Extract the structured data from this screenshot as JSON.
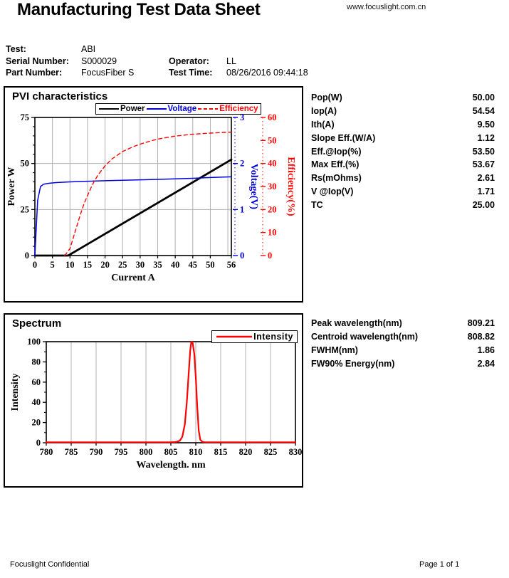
{
  "header": {
    "title": "Manufacturing Test Data Sheet",
    "website": "www.focuslight.com.cn"
  },
  "info": {
    "test_label": "Test:",
    "test_value": "ABI",
    "serial_label": "Serial Number:",
    "serial_value": "S000029",
    "operator_label": "Operator:",
    "operator_value": "LL",
    "part_label": "Part Number:",
    "part_value": "FocusFiber S",
    "time_label": "Test Time:",
    "time_value": "08/26/2016 09:44:18"
  },
  "pvi": {
    "title": "PVI characteristics",
    "stats": [
      {
        "label": "Pop(W)",
        "value": "50.00"
      },
      {
        "label": "Iop(A)",
        "value": "54.54"
      },
      {
        "label": "Ith(A)",
        "value": "9.50"
      },
      {
        "label": "Slope Eff.(W/A)",
        "value": "1.12"
      },
      {
        "label": "Eff.@Iop(%)",
        "value": "53.50"
      },
      {
        "label": "Max Eff.(%)",
        "value": "53.67"
      },
      {
        "label": "Rs(mOhms)",
        "value": "2.61"
      },
      {
        "label": "V @Iop(V)",
        "value": "1.71"
      },
      {
        "label": "TC",
        "value": "25.00"
      }
    ]
  },
  "spectrum": {
    "title": "Spectrum",
    "stats": [
      {
        "label": "Peak wavelength(nm)",
        "value": "809.21"
      },
      {
        "label": "Centroid wavelength(nm)",
        "value": "808.82"
      },
      {
        "label": "FWHM(nm)",
        "value": "1.86"
      },
      {
        "label": "FW90% Energy(nm)",
        "value": "2.84"
      }
    ]
  },
  "footer": {
    "left": "Focuslight Confidential",
    "right": "Page 1 of 1"
  },
  "colors": {
    "power": "#000000",
    "voltage": "#0000dd",
    "efficiency": "#ff0000",
    "grid": "#b0b0b0"
  },
  "chart_data": [
    {
      "type": "line",
      "title": "PVI characteristics",
      "xlabel": "Current A",
      "xlim": [
        0,
        56
      ],
      "xticks": [
        0,
        5,
        10,
        15,
        20,
        25,
        30,
        35,
        40,
        45,
        50,
        56
      ],
      "grid": {
        "x": [
          5,
          10,
          15,
          20,
          25,
          30,
          35,
          40,
          45,
          50,
          55
        ],
        "y_power": [
          25,
          50
        ]
      },
      "legend_position": "top",
      "axes": [
        {
          "label": "Power W",
          "side": "left",
          "color": "#000000",
          "lim": [
            0,
            75
          ],
          "ticks": [
            0,
            25,
            50,
            75
          ]
        },
        {
          "label": "Voltage(V)",
          "side": "right",
          "color": "#0000dd",
          "lim": [
            0,
            3
          ],
          "ticks": [
            0,
            1,
            2,
            3
          ]
        },
        {
          "label": "Efficiency(%)",
          "side": "right2",
          "color": "#ff0000",
          "lim": [
            0,
            60
          ],
          "ticks": [
            0,
            10,
            20,
            30,
            40,
            50,
            60
          ]
        }
      ],
      "series": [
        {
          "name": "Power",
          "axis": 0,
          "color": "#000000",
          "width": 2.8,
          "dash": false,
          "points": [
            [
              0,
              0
            ],
            [
              9.5,
              0
            ],
            [
              56,
              52.1
            ]
          ]
        },
        {
          "name": "Voltage",
          "axis": 1,
          "color": "#0000dd",
          "width": 1.5,
          "dash": false,
          "points": [
            [
              0,
              0
            ],
            [
              0.8,
              1.2
            ],
            [
              1.6,
              1.5
            ],
            [
              2.5,
              1.55
            ],
            [
              4,
              1.57
            ],
            [
              6,
              1.585
            ],
            [
              10,
              1.6
            ],
            [
              15,
              1.615
            ],
            [
              20,
              1.625
            ],
            [
              25,
              1.635
            ],
            [
              30,
              1.645
            ],
            [
              35,
              1.655
            ],
            [
              40,
              1.665
            ],
            [
              45,
              1.678
            ],
            [
              50,
              1.695
            ],
            [
              56,
              1.71
            ]
          ]
        },
        {
          "name": "Efficiency",
          "axis": 2,
          "color": "#ff0000",
          "width": 1.4,
          "dash": true,
          "points": [
            [
              8.5,
              0
            ],
            [
              10,
              3
            ],
            [
              11,
              8
            ],
            [
              12,
              13
            ],
            [
              13,
              18
            ],
            [
              14,
              22.5
            ],
            [
              15,
              26
            ],
            [
              16,
              29.5
            ],
            [
              17,
              32.5
            ],
            [
              18,
              35
            ],
            [
              20,
              39
            ],
            [
              22,
              42
            ],
            [
              25,
              45.2
            ],
            [
              28,
              47.3
            ],
            [
              30,
              48.4
            ],
            [
              33,
              49.8
            ],
            [
              35,
              50.6
            ],
            [
              38,
              51.4
            ],
            [
              40,
              51.9
            ],
            [
              43,
              52.4
            ],
            [
              45,
              52.7
            ],
            [
              48,
              53
            ],
            [
              50,
              53.2
            ],
            [
              53,
              53.45
            ],
            [
              56,
              53.6
            ]
          ]
        }
      ]
    },
    {
      "type": "line",
      "title": "Spectrum",
      "xlabel": "Wavelength. nm",
      "ylabel": "Intensity",
      "xlim": [
        780,
        830
      ],
      "xticks": [
        780,
        785,
        790,
        795,
        800,
        805,
        810,
        815,
        820,
        825,
        830
      ],
      "ylim": [
        0,
        100
      ],
      "yticks": [
        0,
        20,
        40,
        60,
        80,
        100
      ],
      "grid": {
        "x": [
          785,
          790,
          795,
          800,
          805,
          810,
          815,
          820,
          825
        ]
      },
      "legend_position": "top-right",
      "series": [
        {
          "name": "Intensity",
          "color": "#ff0000",
          "width": 2.2,
          "dash": false,
          "legend_text_color": "#000000",
          "points": [
            [
              780,
              0.4
            ],
            [
              805,
              0.4
            ],
            [
              806,
              0.8
            ],
            [
              806.8,
              2
            ],
            [
              807.3,
              6
            ],
            [
              807.8,
              18
            ],
            [
              808.2,
              40
            ],
            [
              808.6,
              70
            ],
            [
              808.9,
              92
            ],
            [
              809.1,
              99.5
            ],
            [
              809.21,
              100
            ],
            [
              809.4,
              98
            ],
            [
              809.7,
              88
            ],
            [
              810,
              65
            ],
            [
              810.3,
              35
            ],
            [
              810.6,
              12
            ],
            [
              810.9,
              3
            ],
            [
              811.3,
              1
            ],
            [
              811.8,
              0.5
            ],
            [
              830,
              0.4
            ]
          ]
        }
      ]
    }
  ]
}
